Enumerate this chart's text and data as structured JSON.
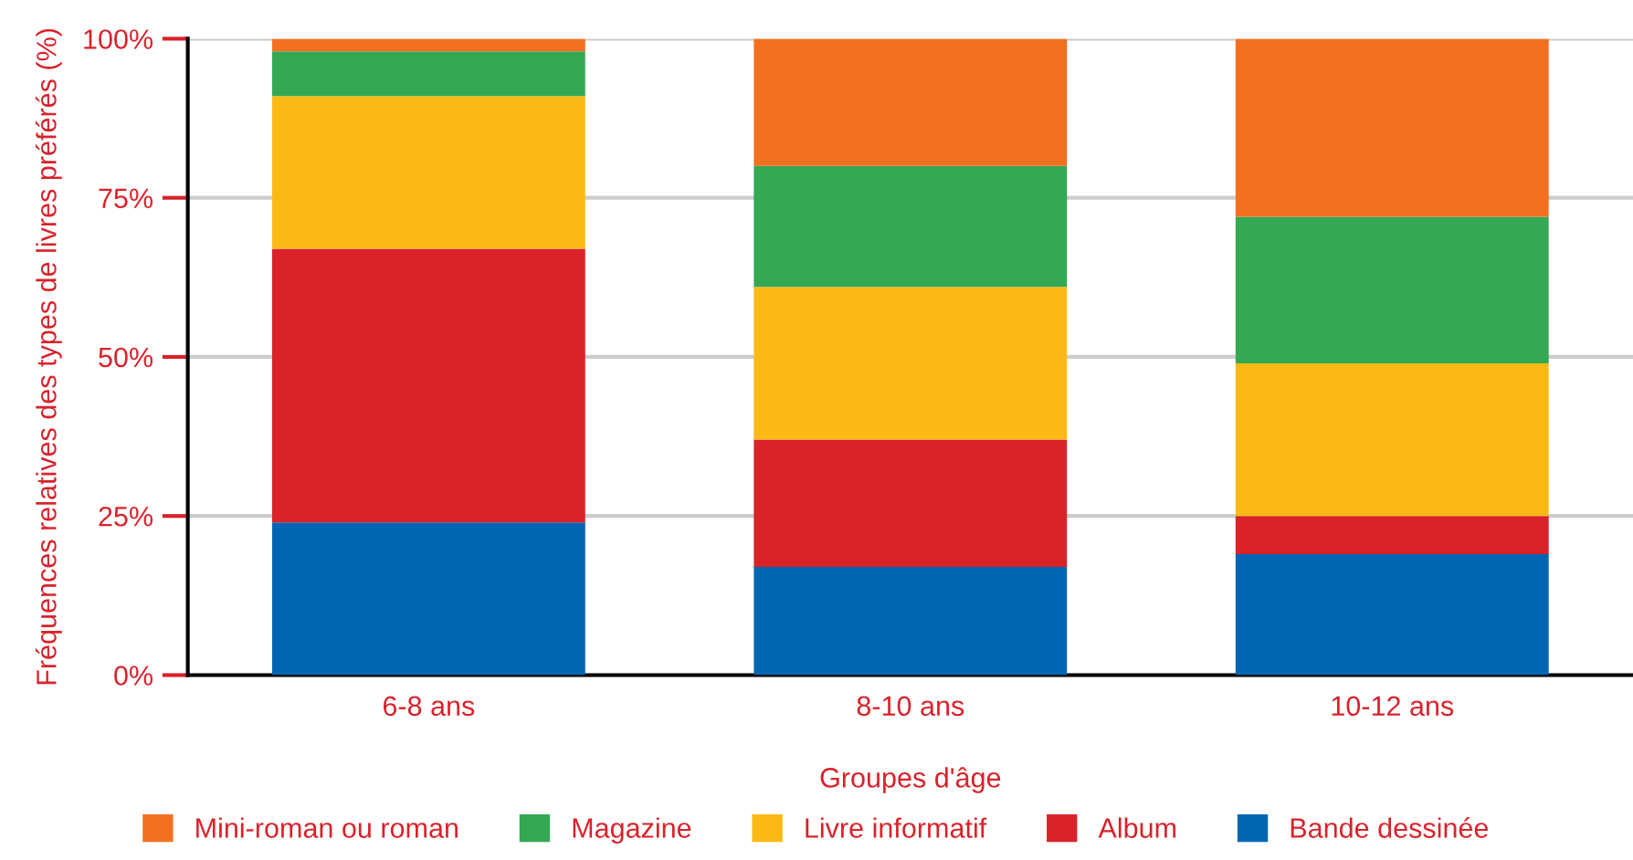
{
  "chart_data": {
    "type": "bar",
    "stacked": true,
    "xlabel": "Groupes d'âge",
    "ylabel": "Fréquences relatives des types de livres préférés (%)",
    "categories": [
      "6-8 ans",
      "8-10 ans",
      "10-12 ans"
    ],
    "series": [
      {
        "name": "Bande dessinée",
        "color": "#0066b3",
        "values": [
          24,
          17,
          19
        ]
      },
      {
        "name": "Album",
        "color": "#d9222a",
        "values": [
          43,
          20,
          6
        ]
      },
      {
        "name": "Livre informatif",
        "color": "#fbb916",
        "values": [
          24,
          24,
          24
        ]
      },
      {
        "name": "Magazine",
        "color": "#34a853",
        "values": [
          7,
          19,
          23
        ]
      },
      {
        "name": "Mini-roman ou roman",
        "color": "#f37021",
        "values": [
          2,
          20,
          28
        ]
      }
    ],
    "ylim": [
      0,
      100
    ],
    "yticks": [
      {
        "value": 0,
        "label": "0%"
      },
      {
        "value": 25,
        "label": "25%"
      },
      {
        "value": 50,
        "label": "50%"
      },
      {
        "value": 75,
        "label": "75%"
      },
      {
        "value": 100,
        "label": "100%"
      }
    ],
    "grid": "y",
    "legend": "bottom"
  }
}
